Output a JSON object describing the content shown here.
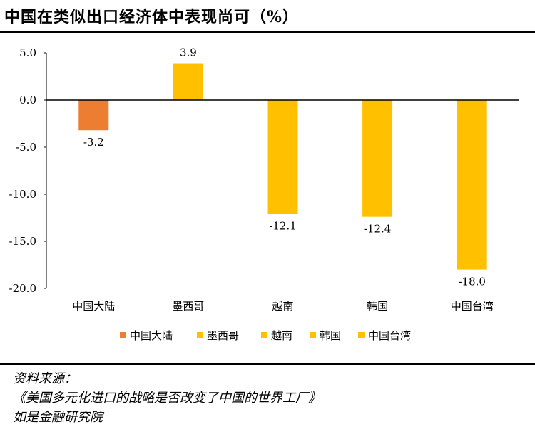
{
  "chart_data": {
    "type": "bar",
    "title": "中国在类似出口经济体中表现尚可（%）",
    "categories": [
      "中国大陆",
      "墨西哥",
      "越南",
      "韩国",
      "中国台湾"
    ],
    "values": [
      -3.2,
      3.9,
      -12.1,
      -12.4,
      -18.0
    ],
    "value_labels": [
      "-3.2",
      "3.9",
      "-12.1",
      "-12.4",
      "-18.0"
    ],
    "colors": [
      "#ED7D31",
      "#FFC000",
      "#FFC000",
      "#FFC000",
      "#FFC000"
    ],
    "ylim": [
      -20,
      5
    ],
    "yticks": [
      5,
      0,
      -5,
      -10,
      -15,
      -20
    ],
    "ytick_labels": [
      "5.0",
      "0.0",
      "-5.0",
      "-10.0",
      "-15.0",
      "-20.0"
    ],
    "xlabel": "",
    "ylabel": "",
    "legend": [
      "中国大陆",
      "墨西哥",
      "越南",
      "韩国",
      "中国台湾"
    ],
    "legend_position": "bottom",
    "grid": false
  },
  "source": {
    "label": "资料来源：",
    "title": "《美国多元化进口的战略是否改变了中国的世界工厂》",
    "org": "如是金融研究院"
  }
}
